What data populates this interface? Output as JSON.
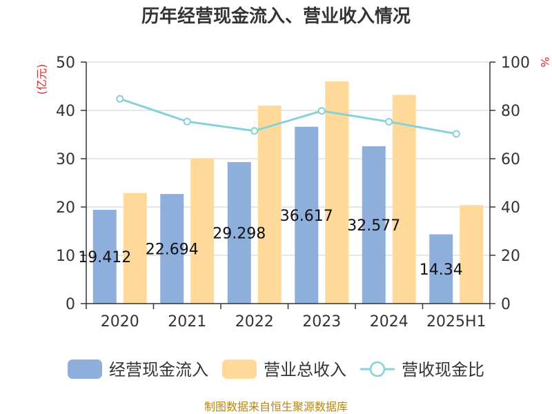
{
  "chart_data": {
    "type": "bar",
    "title": "历年经营现金流入、营业收入情况",
    "categories": [
      "2020",
      "2021",
      "2022",
      "2023",
      "2024",
      "2025H1"
    ],
    "left_axis": {
      "unit": "(亿元)",
      "ylim": [
        0,
        50
      ],
      "ticks": [
        "0",
        "10",
        "20",
        "30",
        "40",
        "50"
      ]
    },
    "right_axis": {
      "unit": "%",
      "ylim": [
        0,
        100
      ],
      "ticks": [
        "0",
        "20",
        "40",
        "60",
        "80",
        "100"
      ]
    },
    "grid": true,
    "legend_position": "bottom",
    "series": [
      {
        "name": "经营现金流入",
        "type": "bar",
        "axis": "left",
        "color": "#8eaedb",
        "values": [
          19.412,
          22.694,
          29.298,
          36.617,
          32.577,
          14.34
        ],
        "labels": [
          "19.412",
          "22.694",
          "29.298",
          "36.617",
          "32.577",
          "14.34"
        ]
      },
      {
        "name": "营业总收入",
        "type": "bar",
        "axis": "left",
        "color": "#fed99a",
        "values": [
          22.9,
          30.1,
          41.0,
          46.0,
          43.2,
          20.4
        ]
      },
      {
        "name": "营收现金比",
        "type": "line",
        "axis": "right",
        "color": "#86d2d8",
        "values": [
          84.8,
          75.4,
          71.5,
          79.8,
          75.3,
          70.3
        ]
      }
    ],
    "source": "制图数据来自恒生聚源数据库"
  }
}
